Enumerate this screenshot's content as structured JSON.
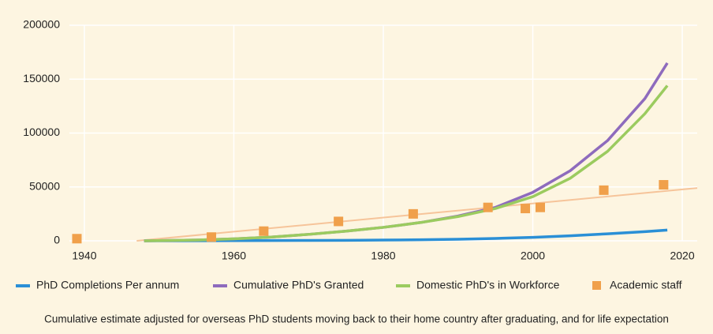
{
  "chart_data": {
    "type": "line",
    "x": [
      1948,
      1955,
      1960,
      1965,
      1970,
      1975,
      1980,
      1985,
      1990,
      1995,
      2000,
      2005,
      2010,
      2015,
      2018
    ],
    "series": [
      {
        "name": "PhD Completions Per annum",
        "color": "#2a8fd6",
        "values": [
          0,
          100,
          200,
          300,
          400,
          500,
          700,
          1000,
          1500,
          2200,
          3200,
          4700,
          6500,
          8500,
          10000
        ]
      },
      {
        "name": "Cumulative PhD's Granted",
        "color": "#8e6bbd",
        "values": [
          0,
          700,
          1800,
          3500,
          6000,
          9000,
          12500,
          17000,
          23000,
          31000,
          45000,
          65000,
          93000,
          132000,
          165000
        ]
      },
      {
        "name": "Domestic PhD's in Workforce",
        "color": "#9bcb5f",
        "values": [
          0,
          700,
          1800,
          3500,
          6000,
          9000,
          12500,
          17000,
          22500,
          30000,
          41000,
          58000,
          83000,
          118000,
          144000
        ]
      }
    ],
    "scatter": {
      "name": "Academic staff",
      "color": "#f0a04b",
      "x": [
        1939,
        1957,
        1964,
        1974,
        1984,
        1994,
        1999,
        2001,
        2009.5,
        2017.5
      ],
      "values": [
        2000,
        3500,
        9000,
        18000,
        25000,
        31000,
        30000,
        31000,
        47000,
        52000
      ]
    },
    "trendline": {
      "color": "#f6c49a",
      "x": [
        1947,
        2022
      ],
      "values": [
        0,
        49000
      ]
    },
    "xlim": [
      1938,
      2022
    ],
    "xticks": [
      1940,
      1960,
      1980,
      2000,
      2020
    ],
    "ylim": [
      0,
      200000
    ],
    "yticks": [
      0,
      50000,
      100000,
      150000,
      200000
    ],
    "grid": true,
    "note": "Cumulative estimate adjusted for overseas PhD students moving back to their home country after graduating, and for life expectation"
  }
}
